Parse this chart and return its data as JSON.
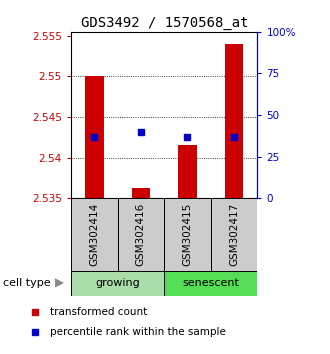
{
  "title": "GDS3492 / 1570568_at",
  "samples": [
    "GSM302414",
    "GSM302416",
    "GSM302415",
    "GSM302417"
  ],
  "bar_bottom": 2.535,
  "red_values": [
    2.55,
    2.5363,
    2.5415,
    2.554
  ],
  "blue_percentiles": [
    37,
    40,
    37,
    37
  ],
  "ylim": [
    2.535,
    2.5555
  ],
  "yticks_left": [
    2.535,
    2.54,
    2.545,
    2.55,
    2.555
  ],
  "yticks_right": [
    0,
    25,
    50,
    75,
    100
  ],
  "grid_ticks": [
    2.54,
    2.545,
    2.55
  ],
  "bar_color": "#cc0000",
  "blue_color": "#0000cc",
  "growing_color": "#aaddaa",
  "senescent_color": "#55dd55",
  "sample_box_color": "#cccccc",
  "title_fontsize": 10,
  "tick_fontsize": 7.5,
  "label_fontsize": 7.5,
  "legend_fontsize": 7.5,
  "cell_type_fontsize": 8,
  "bar_width": 0.4
}
